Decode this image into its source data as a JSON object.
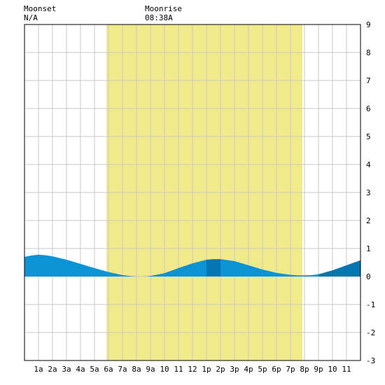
{
  "header": {
    "moonset_label": "Moonset",
    "moonset_value": "N/A",
    "moonrise_label": "Moonrise",
    "moonrise_value": "08:38A"
  },
  "chart_data": {
    "type": "area",
    "title": "",
    "xlabel": "",
    "ylabel": "",
    "x_tick_labels": [
      "1a",
      "2a",
      "3a",
      "4a",
      "5a",
      "6a",
      "7a",
      "8a",
      "9a",
      "10",
      "11",
      "12",
      "1p",
      "2p",
      "3p",
      "4p",
      "5p",
      "6p",
      "7p",
      "8p",
      "9p",
      "10",
      "11"
    ],
    "y_tick_labels": [
      "9",
      "8",
      "7",
      "6",
      "5",
      "4",
      "3",
      "2",
      "1",
      "0",
      "-1",
      "-2",
      "-3"
    ],
    "xlim": [
      0,
      24
    ],
    "ylim": [
      -3,
      9
    ],
    "grid": true,
    "daylight_hours": [
      5.85,
      19.85
    ],
    "tide": {
      "x": [
        0,
        0.5,
        1,
        1.5,
        2,
        3,
        4,
        5,
        6,
        7,
        7.5,
        8,
        8.5,
        9,
        10,
        11,
        12,
        13,
        13.5,
        14,
        15,
        16,
        17,
        18,
        19,
        19.5,
        20,
        20.5,
        21,
        22,
        23,
        24
      ],
      "y": [
        0.7,
        0.75,
        0.78,
        0.76,
        0.72,
        0.6,
        0.45,
        0.3,
        0.16,
        0.05,
        0.02,
        0.0,
        0.0,
        0.02,
        0.12,
        0.3,
        0.47,
        0.6,
        0.62,
        0.62,
        0.55,
        0.4,
        0.25,
        0.13,
        0.06,
        0.04,
        0.04,
        0.05,
        0.08,
        0.22,
        0.4,
        0.58
      ]
    },
    "colors": {
      "daylight": "#f2ea8a",
      "grid": "#c8c8c8",
      "tide_light": "#0b93d6",
      "tide_dark": "#0576b0",
      "border": "#000000"
    }
  }
}
